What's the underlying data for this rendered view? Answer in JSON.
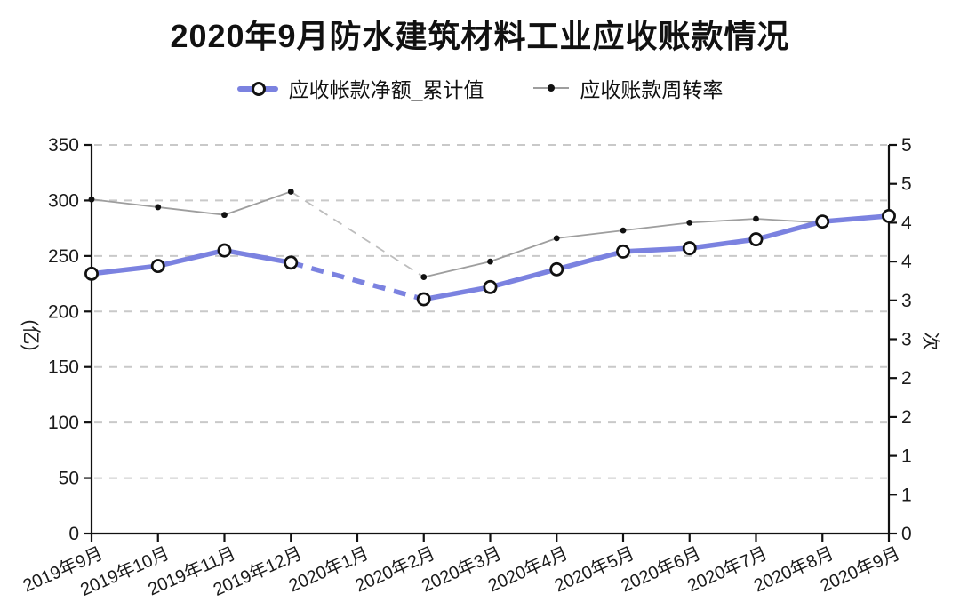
{
  "title": "2020年9月防水建筑材料工业应收账款情况",
  "legend": [
    {
      "label": "应收帐款净额_累计值",
      "marker": "blue-line-with-circle"
    },
    {
      "label": "应收账款周转率",
      "marker": "gray-line-with-dot"
    }
  ],
  "colors": {
    "primary_line": "#7b82e0",
    "secondary_line": "#9e9e9e",
    "secondary_gap_line": "#bdbdbd",
    "grid": "#c9c9c9",
    "axis": "#111111",
    "text": "#1b1b1b"
  },
  "chart_data": {
    "type": "line",
    "title": "2020年9月防水建筑材料工业应收账款情况",
    "categories": [
      "2019年9月",
      "2019年10月",
      "2019年11月",
      "2019年12月",
      "2020年1月",
      "2020年2月",
      "2020年3月",
      "2020年4月",
      "2020年5月",
      "2020年6月",
      "2020年7月",
      "2020年8月",
      "2020年9月"
    ],
    "series": [
      {
        "name": "应收帐款净额_累计值",
        "axis": "left",
        "unit": "亿",
        "values": [
          234,
          241,
          255,
          244,
          null,
          211,
          222,
          238,
          254,
          257,
          265,
          281,
          286
        ],
        "gap_rendered_as": "dashed-bridge"
      },
      {
        "name": "应收账款周转率",
        "axis": "right",
        "unit": "次",
        "values": [
          4.3,
          4.2,
          4.1,
          4.4,
          null,
          3.3,
          3.5,
          3.8,
          3.9,
          4.0,
          4.05,
          4.0,
          4.1
        ],
        "gap_rendered_as": "dashed-bridge"
      }
    ],
    "left_axis": {
      "label": "(亿)",
      "min": 0,
      "max": 350,
      "tick_step": 50,
      "tick_labels": [
        "350",
        "300",
        "250",
        "200",
        "150",
        "100",
        "50",
        "0"
      ]
    },
    "right_axis": {
      "label": "次",
      "min": 0,
      "max": 5,
      "tick_step": 0.5,
      "tick_labels": [
        "5",
        "5",
        "4",
        "4",
        "3",
        "3",
        "2",
        "2",
        "1",
        "1",
        "0"
      ]
    },
    "grid": "horizontal-dashed",
    "legend_position": "top"
  }
}
